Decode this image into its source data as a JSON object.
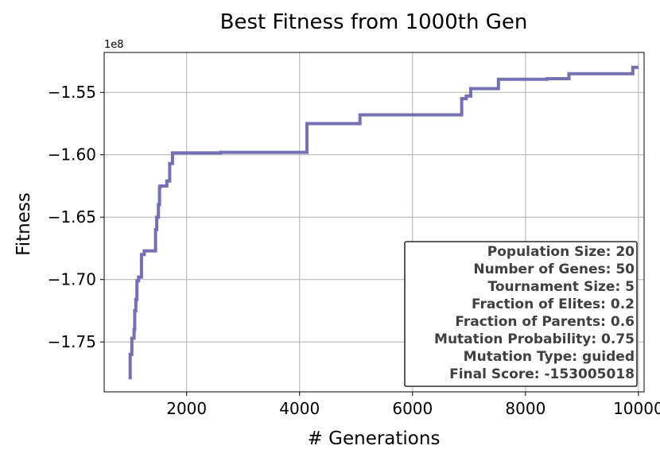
{
  "chart_data": {
    "type": "line",
    "title": "Best Fitness from 1000th Gen",
    "xlabel": "# Generations",
    "ylabel": "Fitness",
    "y_offset_label": "1e8",
    "xlim": [
      540,
      10100
    ],
    "ylim": [
      -179000000,
      -151800000
    ],
    "x_ticks": [
      2000,
      4000,
      6000,
      8000,
      10000
    ],
    "x_tick_labels": [
      "2000",
      "4000",
      "6000",
      "8000",
      "10000"
    ],
    "y_ticks": [
      -175000000,
      -170000000,
      -165000000,
      -160000000,
      -155000000
    ],
    "y_tick_labels": [
      "−1.75",
      "−1.70",
      "−1.65",
      "−1.60",
      "−1.55"
    ],
    "grid": true,
    "line_color": "#7470b3",
    "series": [
      {
        "x": [
          1000,
          1000,
          1030,
          1030,
          1070,
          1070,
          1080,
          1080,
          1100,
          1100,
          1120,
          1120,
          1150,
          1150,
          1200,
          1200,
          1250,
          1250,
          1450,
          1450,
          1470,
          1470,
          1500,
          1500,
          1520,
          1520,
          1530,
          1530,
          1650,
          1650,
          1700,
          1700,
          1750,
          1750,
          2600,
          2600,
          4130,
          4130,
          5070,
          5070,
          6870,
          6870,
          6950,
          6950,
          7030,
          7030,
          7520,
          7520,
          8380,
          8380,
          8770,
          8770,
          9900,
          9900,
          10000
        ],
        "y": [
          -178000000,
          -176000000,
          -176000000,
          -174700000,
          -174700000,
          -174000000,
          -174000000,
          -172500000,
          -172500000,
          -171600000,
          -171600000,
          -170100000,
          -170100000,
          -169800000,
          -169800000,
          -168000000,
          -168000000,
          -167700000,
          -167700000,
          -166000000,
          -166000000,
          -165000000,
          -165000000,
          -164000000,
          -164000000,
          -162600000,
          -162600000,
          -162500000,
          -162500000,
          -162100000,
          -162100000,
          -160700000,
          -160700000,
          -159850000,
          -159850000,
          -159800000,
          -159800000,
          -157500000,
          -157500000,
          -156800000,
          -156800000,
          -155500000,
          -155500000,
          -155300000,
          -155300000,
          -154700000,
          -154700000,
          -153950000,
          -153950000,
          -153900000,
          -153900000,
          -153500000,
          -153500000,
          -153000000,
          -153000000
        ]
      }
    ],
    "annotation": {
      "lines": [
        "Population Size: 20",
        "Number of Genes: 50",
        "Tournament Size: 5",
        "Fraction of Elites: 0.2",
        "Fraction of Parents: 0.6",
        "Mutation Probability: 0.75",
        "Mutation Type: guided",
        "Final Score: -153005018"
      ],
      "placement": "lower-right"
    }
  }
}
